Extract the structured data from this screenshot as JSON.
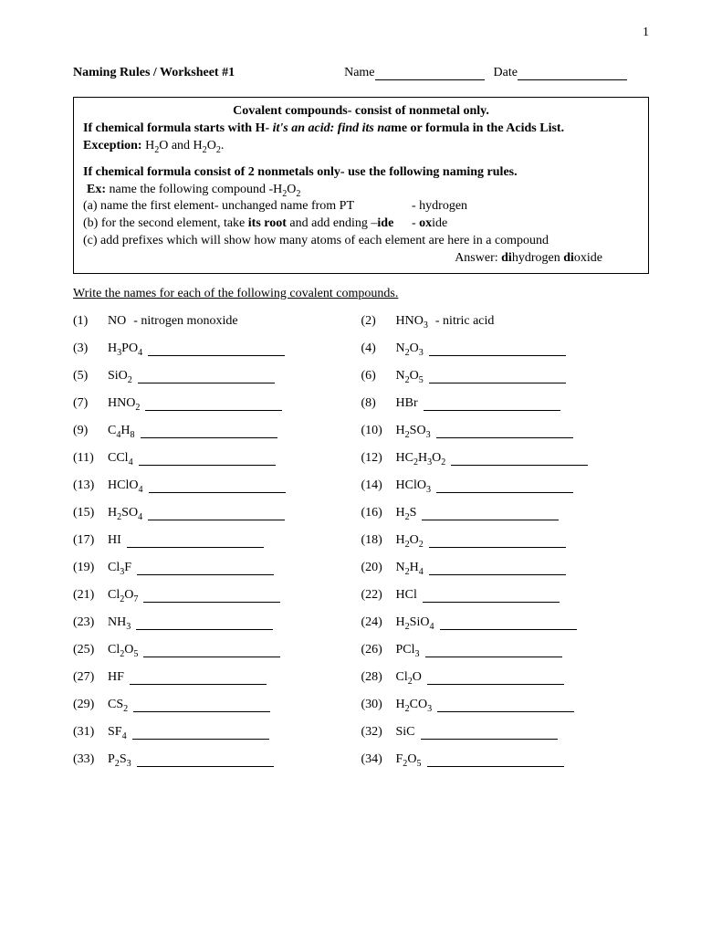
{
  "page_number": "1",
  "header": {
    "title": "Naming Rules / Worksheet #1",
    "name_label": "Name",
    "date_label": "Date"
  },
  "rules": {
    "line1": "Covalent compounds- consist of nonmetal only.",
    "line2_a": "If chemical formula starts with H- ",
    "line2_b": "it's an acid: find its na",
    "line2_c": "me or formula in the Acids List.",
    "exception_label": "Exception:",
    "exception_text": " H₂O and H₂O₂.",
    "line4": "If chemical formula consist of 2 nonmetals only- use the following naming rules.",
    "ex_label": "Ex:",
    "ex_text": " name the following compound -H₂O₂",
    "a": "(a) name the first element- unchanged name from PT",
    "a_ans": "- hydrogen",
    "b_a": "(b) for the second element, take ",
    "b_b": "its root",
    "b_c": " and add ending –",
    "b_d": "ide",
    "b_ans_a": "- ",
    "b_ans_b": "ox",
    "b_ans_c": "ide",
    "c": "(c) add prefixes which will show how many atoms of each element are here in a compound",
    "ans_label": "Answer: ",
    "ans_b1": "di",
    "ans_t1": "hydrogen ",
    "ans_b2": "di",
    "ans_t2": "oxide"
  },
  "instruction": "Write the names for each of the following covalent compounds.",
  "q": {
    "r1": {
      "n1": "(1)",
      "f1": "NO",
      "a1": "- nitrogen monoxide",
      "n2": "(2)",
      "f2": "HNO₃",
      "a2": "-    nitric acid"
    },
    "r2": {
      "n1": "(3)",
      "f1": "H₃PO₄",
      "n2": "(4)",
      "f2": "N₂O₃"
    },
    "r3": {
      "n1": "(5)",
      "f1": "SiO₂",
      "n2": "(6)",
      "f2": "N₂O₅"
    },
    "r4": {
      "n1": "(7)",
      "f1": "HNO₂",
      "n2": "(8)",
      "f2": "HBr"
    },
    "r5": {
      "n1": "(9)",
      "f1": "C₄H₈",
      "n2": "(10)",
      "f2": "H₂SO₃"
    },
    "r6": {
      "n1": "(11)",
      "f1": "CCl₄",
      "n2": "(12)",
      "f2": "HC₂H₃O₂"
    },
    "r7": {
      "n1": "(13)",
      "f1": "HClO₄",
      "n2": "(14)",
      "f2": "HClO₃"
    },
    "r8": {
      "n1": "(15)",
      "f1": "H₂SO₄",
      "n2": "(16)",
      "f2": "H₂S"
    },
    "r9": {
      "n1": "(17)",
      "f1": "HI",
      "n2": "(18)",
      "f2": "H₂O₂"
    },
    "r10": {
      "n1": "(19)",
      "f1": "Cl₃F",
      "n2": "(20)",
      "f2": "N₂H₄"
    },
    "r11": {
      "n1": "(21)",
      "f1": "Cl₂O₇",
      "n2": "(22)",
      "f2": "HCl"
    },
    "r12": {
      "n1": "(23)",
      "f1": "NH₃",
      "n2": "(24)",
      "f2": "H₂SiO₄"
    },
    "r13": {
      "n1": "(25)",
      "f1": "Cl₂O₅",
      "n2": "(26)",
      "f2": "PCl₃"
    },
    "r14": {
      "n1": "(27)",
      "f1": "HF",
      "n2": "(28)",
      "f2": "Cl₂O"
    },
    "r15": {
      "n1": "(29)",
      "f1": "CS₂",
      "n2": "(30)",
      "f2": "H₂CO₃"
    },
    "r16": {
      "n1": "(31)",
      "f1": "SF₄",
      "n2": "(32)",
      "f2": "SiC"
    },
    "r17": {
      "n1": "(33)",
      "f1": "P₂S₃",
      "n2": "(34)",
      "f2": "F₂O₅"
    }
  }
}
